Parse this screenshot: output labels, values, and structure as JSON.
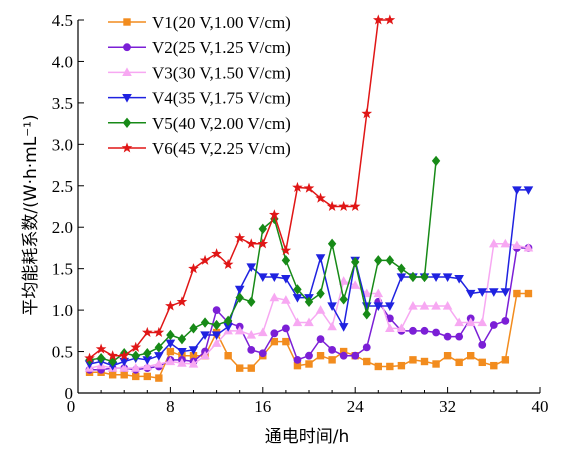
{
  "chart_data": {
    "type": "line",
    "xlabel": "通电时间/h",
    "ylabel": "平均能耗系数/(W·h·mL⁻¹)",
    "xlim": [
      0,
      40
    ],
    "ylim": [
      0,
      4.5
    ],
    "xticks": [
      "8",
      "16",
      "24",
      "32",
      "40"
    ],
    "xtick_values": [
      8,
      16,
      24,
      32,
      40
    ],
    "yticks": [
      "0",
      "0.5",
      "1.0",
      "1.5",
      "2.0",
      "2.5",
      "3.0",
      "3.5",
      "4.0",
      "4.5"
    ],
    "ytick_values": [
      0,
      0.5,
      1.0,
      1.5,
      2.0,
      2.5,
      3.0,
      3.5,
      4.0,
      4.5
    ],
    "x_origin_label": "0",
    "legend_position": "top-left",
    "grid": false,
    "series": [
      {
        "name": "V1(20 V,1.00 V/cm)",
        "color": "#f28c1e",
        "marker": "square",
        "x": [
          1,
          2,
          3,
          4,
          5,
          6,
          7,
          8,
          9,
          10,
          11,
          12,
          13,
          14,
          15,
          16,
          17,
          18,
          19,
          20,
          21,
          22,
          23,
          24,
          25,
          26,
          27,
          28,
          29,
          30,
          31,
          32,
          33,
          34,
          35,
          36,
          37,
          38,
          39
        ],
        "y": [
          0.25,
          0.25,
          0.22,
          0.22,
          0.2,
          0.2,
          0.18,
          0.5,
          0.45,
          0.45,
          0.45,
          0.73,
          0.45,
          0.3,
          0.3,
          0.45,
          0.62,
          0.62,
          0.33,
          0.35,
          0.45,
          0.4,
          0.5,
          0.45,
          0.38,
          0.32,
          0.32,
          0.33,
          0.4,
          0.38,
          0.35,
          0.45,
          0.37,
          0.45,
          0.37,
          0.33,
          0.4,
          1.2,
          1.2
        ]
      },
      {
        "name": "V2(25 V,1.25 V/cm)",
        "color": "#7b1fd6",
        "marker": "circle",
        "x": [
          1,
          2,
          3,
          4,
          5,
          6,
          7,
          8,
          9,
          10,
          11,
          12,
          13,
          14,
          15,
          16,
          17,
          18,
          19,
          20,
          21,
          22,
          23,
          24,
          25,
          26,
          27,
          28,
          29,
          30,
          31,
          32,
          33,
          34,
          35,
          36,
          37,
          38,
          39
        ],
        "y": [
          0.28,
          0.28,
          0.3,
          0.3,
          0.28,
          0.3,
          0.32,
          0.4,
          0.4,
          0.38,
          0.5,
          1.0,
          0.85,
          0.8,
          0.52,
          0.48,
          0.72,
          0.78,
          0.4,
          0.45,
          0.65,
          0.52,
          0.45,
          0.45,
          0.55,
          1.1,
          0.9,
          0.75,
          0.75,
          0.75,
          0.73,
          0.68,
          0.68,
          0.9,
          0.58,
          0.82,
          0.87,
          1.75,
          1.75
        ]
      },
      {
        "name": "V3(30 V,1.50 V/cm)",
        "color": "#f7a8f2",
        "marker": "triangle-up",
        "x": [
          1,
          2,
          3,
          4,
          5,
          6,
          7,
          8,
          9,
          10,
          11,
          12,
          13,
          14,
          15,
          16,
          17,
          18,
          19,
          20,
          21,
          22,
          23,
          24,
          25,
          26,
          27,
          28,
          29,
          30,
          31,
          32,
          33,
          34,
          35,
          36,
          37,
          38,
          39
        ],
        "y": [
          0.3,
          0.33,
          0.3,
          0.3,
          0.3,
          0.32,
          0.35,
          0.38,
          0.36,
          0.35,
          0.45,
          0.6,
          0.75,
          0.75,
          0.7,
          0.73,
          1.15,
          1.12,
          0.85,
          0.85,
          1.0,
          0.8,
          1.35,
          1.3,
          1.2,
          1.2,
          0.78,
          0.78,
          1.05,
          1.05,
          1.05,
          1.05,
          0.85,
          0.85,
          0.85,
          1.8,
          1.8,
          1.78,
          1.75
        ]
      },
      {
        "name": "V4(35 V,1.75 V/cm)",
        "color": "#1f22e0",
        "marker": "triangle-down",
        "x": [
          1,
          2,
          3,
          4,
          5,
          6,
          7,
          8,
          9,
          10,
          11,
          12,
          13,
          14,
          15,
          16,
          17,
          18,
          19,
          20,
          21,
          22,
          23,
          24,
          25,
          26,
          27,
          28,
          29,
          30,
          31,
          32,
          33,
          34,
          35,
          36,
          37,
          38,
          39
        ],
        "y": [
          0.35,
          0.38,
          0.33,
          0.38,
          0.42,
          0.4,
          0.45,
          0.6,
          0.5,
          0.52,
          0.7,
          0.7,
          0.8,
          1.25,
          1.52,
          1.4,
          1.4,
          1.38,
          1.15,
          1.15,
          1.63,
          1.05,
          0.8,
          1.6,
          1.05,
          1.05,
          1.05,
          1.4,
          1.4,
          1.4,
          1.4,
          1.4,
          1.38,
          1.2,
          1.22,
          1.22,
          1.22,
          2.45,
          2.45
        ]
      },
      {
        "name": "V5(40 V,2.00 V/cm)",
        "color": "#178a17",
        "marker": "diamond",
        "x": [
          1,
          2,
          3,
          4,
          5,
          6,
          7,
          8,
          9,
          10,
          11,
          12,
          13,
          14,
          15,
          16,
          17,
          18,
          19,
          20,
          21,
          22,
          23,
          24,
          25,
          26,
          27,
          28,
          29,
          30,
          31
        ],
        "y": [
          0.4,
          0.42,
          0.38,
          0.48,
          0.45,
          0.48,
          0.55,
          0.7,
          0.65,
          0.78,
          0.85,
          0.82,
          0.87,
          1.15,
          1.1,
          1.98,
          2.1,
          1.6,
          1.25,
          1.1,
          1.2,
          1.8,
          1.13,
          1.58,
          0.95,
          1.6,
          1.6,
          1.5,
          1.4,
          1.4,
          2.8
        ]
      },
      {
        "name": "V6(45 V,2.25 V/cm)",
        "color": "#e01616",
        "marker": "star",
        "x": [
          1,
          2,
          3,
          4,
          5,
          6,
          7,
          8,
          9,
          10,
          11,
          12,
          13,
          14,
          15,
          16,
          17,
          18,
          19,
          20,
          21,
          22,
          23,
          24,
          25,
          26,
          27
        ],
        "y": [
          0.42,
          0.53,
          0.45,
          0.45,
          0.55,
          0.73,
          0.73,
          1.05,
          1.1,
          1.5,
          1.6,
          1.68,
          1.55,
          1.87,
          1.8,
          1.8,
          2.15,
          1.72,
          2.48,
          2.47,
          2.35,
          2.25,
          2.25,
          2.25,
          3.37,
          4.5,
          4.5
        ]
      }
    ]
  }
}
